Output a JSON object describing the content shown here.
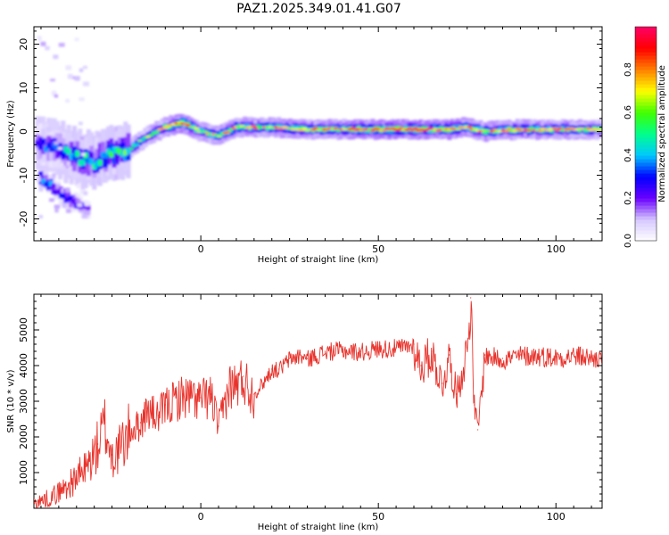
{
  "chart_data": [
    {
      "type": "heatmap",
      "title": "PAZ1.2025.349.01.41.G07",
      "xlabel": "Height of straight line (km)",
      "ylabel": "Frequency (Hz)",
      "xlim": [
        -47,
        113
      ],
      "ylim": [
        -25,
        24
      ],
      "xticks": [
        0,
        50,
        100
      ],
      "yticks": [
        -20,
        -10,
        0,
        10,
        20
      ],
      "colorbar": {
        "label": "Normalized spectral amplitude",
        "range": [
          0,
          1
        ],
        "ticks": [
          "0.0",
          "0.2",
          "0.4",
          "0.6",
          "0.8"
        ],
        "colors": [
          "#ffffff",
          "#d6c8ff",
          "#6a00ff",
          "#0000ff",
          "#00c8ff",
          "#00ff8c",
          "#40ff00",
          "#ffff00",
          "#ff8000",
          "#ff0000",
          "#ff0066"
        ]
      },
      "ridge": {
        "x": [
          -45,
          -40,
          -35,
          -30,
          -25,
          -20,
          -15,
          -10,
          -5,
          0,
          5,
          10,
          20,
          30,
          40,
          50,
          60,
          70,
          75,
          80,
          90,
          100,
          113
        ],
        "frequency": [
          -3,
          -4,
          -6,
          -7,
          -5,
          -4,
          -1,
          1,
          2,
          0,
          -1,
          1,
          1,
          0.5,
          0.5,
          0.5,
          0.5,
          0.5,
          1,
          0,
          0.5,
          0.5,
          0.5
        ],
        "amplitude": [
          0.3,
          0.35,
          0.45,
          0.45,
          0.5,
          0.55,
          0.6,
          0.7,
          0.9,
          0.6,
          0.75,
          0.7,
          0.75,
          0.75,
          0.75,
          0.85,
          0.95,
          0.85,
          0.8,
          0.75,
          0.75,
          0.75,
          0.7
        ]
      },
      "secondary_branch": {
        "x": [
          -45,
          -42,
          -40,
          -38,
          -36,
          -34,
          -31
        ],
        "frequency": [
          -11,
          -12,
          -14,
          -15,
          -16,
          -17,
          -18
        ],
        "amplitude": [
          0.35,
          0.3,
          0.25,
          0.25,
          0.2,
          0.2,
          0.15
        ]
      }
    },
    {
      "type": "line",
      "xlabel": "Height of straight line (km)",
      "ylabel": "SNR (10 * v/v)",
      "xlim": [
        -47,
        113
      ],
      "ylim": [
        0,
        6000
      ],
      "xticks": [
        0,
        50,
        100
      ],
      "yticks": [
        1000,
        2000,
        3000,
        4000,
        5000
      ],
      "series": [
        {
          "name": "SNR",
          "color": "#e8332c",
          "x": [
            -47,
            -42,
            -37,
            -32,
            -29,
            -27,
            -25,
            -23,
            -20,
            -17,
            -15,
            -12,
            -10,
            -5,
            0,
            3,
            5,
            8,
            10,
            12,
            15,
            18,
            20,
            22,
            25,
            28,
            30,
            35,
            40,
            45,
            50,
            55,
            60,
            62,
            65,
            68,
            70,
            72,
            75,
            76,
            77,
            78,
            80,
            85,
            90,
            95,
            100,
            105,
            113
          ],
          "values": [
            150,
            350,
            700,
            1200,
            1800,
            2400,
            1500,
            1700,
            2200,
            2400,
            2800,
            2600,
            2900,
            3200,
            3100,
            3200,
            2300,
            3500,
            3500,
            3700,
            3200,
            3600,
            3900,
            3900,
            4200,
            4300,
            4200,
            4400,
            4450,
            4400,
            4500,
            4500,
            4600,
            4000,
            4400,
            3500,
            4300,
            3200,
            4500,
            5900,
            2900,
            2200,
            4300,
            4200,
            4300,
            4300,
            4250,
            4300,
            4200
          ]
        }
      ]
    }
  ]
}
